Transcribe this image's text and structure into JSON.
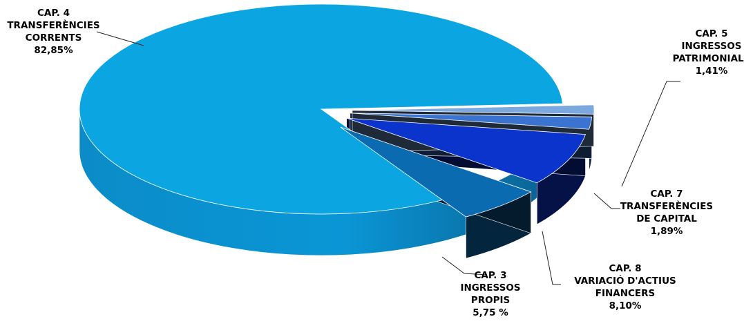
{
  "chart_data": {
    "type": "pie",
    "title": "",
    "slices": [
      {
        "lines": [
          "CAP. 4",
          "TRANSFERÈNCIES",
          "CORRENTS"
        ],
        "value_label": "82,85%",
        "value": 82.85,
        "color": "#0ba6e2"
      },
      {
        "lines": [
          "CAP. 3",
          "INGRESSOS",
          "PROPIS"
        ],
        "value_label": "5,75 %",
        "value": 5.75,
        "color": "#0a6bb0"
      },
      {
        "lines": [
          "CAP. 8",
          "VARIACIÓ D'ACTIUS",
          "FINANCERS"
        ],
        "value_label": "8,10%",
        "value": 8.1,
        "color": "#0a34cc"
      },
      {
        "lines": [
          "CAP. 7",
          "TRANSFERÈNCIES",
          "DE CAPITAL"
        ],
        "value_label": "1,89%",
        "value": 1.89,
        "color": "#3a74d0"
      },
      {
        "lines": [
          "CAP. 5",
          "INGRESSOS",
          "PATRIMONIALS"
        ],
        "value_label": "1,41%",
        "value": 1.41,
        "color": "#7aa8df"
      }
    ]
  }
}
